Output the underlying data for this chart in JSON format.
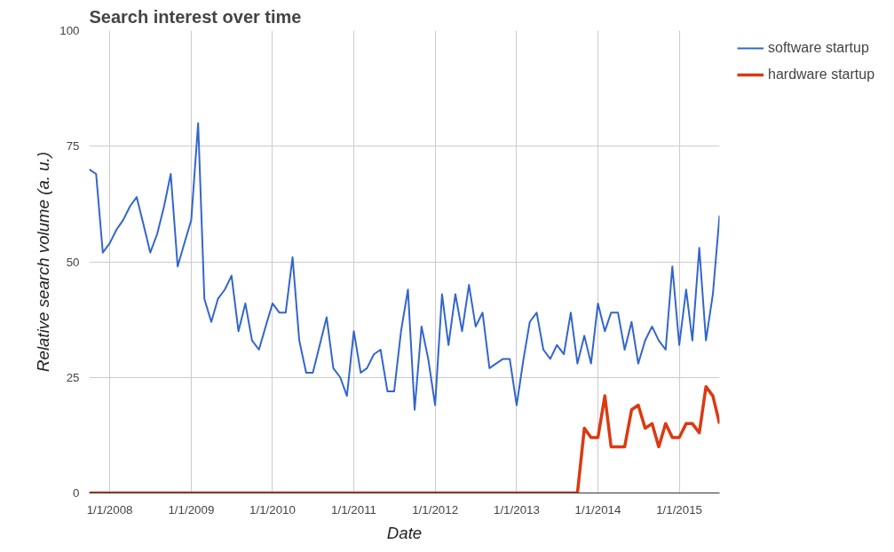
{
  "chart_data": {
    "type": "line",
    "title": "Search interest over time",
    "xlabel": "Date",
    "ylabel": "Relative search volume (a. u.)",
    "x": [
      "2007-10",
      "2007-11",
      "2007-12",
      "2008-01",
      "2008-02",
      "2008-03",
      "2008-04",
      "2008-05",
      "2008-06",
      "2008-07",
      "2008-08",
      "2008-09",
      "2008-10",
      "2008-11",
      "2008-12",
      "2009-01",
      "2009-02",
      "2009-03",
      "2009-04",
      "2009-05",
      "2009-06",
      "2009-07",
      "2009-08",
      "2009-09",
      "2009-10",
      "2009-11",
      "2009-12",
      "2010-01",
      "2010-02",
      "2010-03",
      "2010-04",
      "2010-05",
      "2010-06",
      "2010-07",
      "2010-08",
      "2010-09",
      "2010-10",
      "2010-11",
      "2010-12",
      "2011-01",
      "2011-02",
      "2011-03",
      "2011-04",
      "2011-05",
      "2011-06",
      "2011-07",
      "2011-08",
      "2011-09",
      "2011-10",
      "2011-11",
      "2011-12",
      "2012-01",
      "2012-02",
      "2012-03",
      "2012-04",
      "2012-05",
      "2012-06",
      "2012-07",
      "2012-08",
      "2012-09",
      "2012-10",
      "2012-11",
      "2012-12",
      "2013-01",
      "2013-02",
      "2013-03",
      "2013-04",
      "2013-05",
      "2013-06",
      "2013-07",
      "2013-08",
      "2013-09",
      "2013-10",
      "2013-11",
      "2013-12",
      "2014-01",
      "2014-02",
      "2014-03",
      "2014-04",
      "2014-05",
      "2014-06",
      "2014-07",
      "2014-08",
      "2014-09",
      "2014-10",
      "2014-11",
      "2014-12",
      "2015-01",
      "2015-02",
      "2015-03",
      "2015-04",
      "2015-05",
      "2015-06",
      "2015-07"
    ],
    "series": [
      {
        "name": "software startup",
        "color": "#3366cc",
        "values": [
          70,
          69,
          52,
          54,
          57,
          59,
          62,
          64,
          58,
          52,
          56,
          62,
          69,
          49,
          54,
          59,
          80,
          42,
          37,
          42,
          44,
          47,
          35,
          41,
          33,
          31,
          36,
          41,
          39,
          39,
          51,
          33,
          26,
          26,
          32,
          38,
          27,
          25,
          21,
          35,
          26,
          27,
          30,
          31,
          22,
          22,
          35,
          44,
          18,
          36,
          29,
          19,
          43,
          32,
          43,
          35,
          45,
          36,
          39,
          27,
          28,
          29,
          29,
          19,
          29,
          37,
          39,
          31,
          29,
          32,
          30,
          39,
          28,
          34,
          28,
          41,
          35,
          39,
          39,
          31,
          37,
          28,
          33,
          36,
          33,
          31,
          49,
          32,
          44,
          33,
          53,
          33,
          43,
          60
        ]
      },
      {
        "name": "hardware startup",
        "color": "#dc3912",
        "values": [
          0,
          0,
          0,
          0,
          0,
          0,
          0,
          0,
          0,
          0,
          0,
          0,
          0,
          0,
          0,
          0,
          0,
          0,
          0,
          0,
          0,
          0,
          0,
          0,
          0,
          0,
          0,
          0,
          0,
          0,
          0,
          0,
          0,
          0,
          0,
          0,
          0,
          0,
          0,
          0,
          0,
          0,
          0,
          0,
          0,
          0,
          0,
          0,
          0,
          0,
          0,
          0,
          0,
          0,
          0,
          0,
          0,
          0,
          0,
          0,
          0,
          0,
          0,
          0,
          0,
          0,
          0,
          0,
          0,
          0,
          0,
          0,
          0,
          14,
          12,
          12,
          21,
          10,
          10,
          10,
          18,
          19,
          14,
          15,
          10,
          15,
          12,
          12,
          15,
          15,
          13,
          23,
          21,
          15
        ]
      }
    ],
    "xlim": [
      "2007-10",
      "2015-07"
    ],
    "xticks": [
      {
        "value": "2008-01",
        "label": "1/1/2008"
      },
      {
        "value": "2009-01",
        "label": "1/1/2009"
      },
      {
        "value": "2010-01",
        "label": "1/1/2010"
      },
      {
        "value": "2011-01",
        "label": "1/1/2011"
      },
      {
        "value": "2012-01",
        "label": "1/1/2012"
      },
      {
        "value": "2013-01",
        "label": "1/1/2013"
      },
      {
        "value": "2014-01",
        "label": "1/1/2014"
      },
      {
        "value": "2015-01",
        "label": "1/1/2015"
      }
    ],
    "ylim": [
      0,
      100
    ],
    "yticks": [
      0,
      25,
      50,
      75,
      100
    ],
    "grid": true,
    "legend": "right",
    "marker": "none",
    "line_style": "solid"
  }
}
